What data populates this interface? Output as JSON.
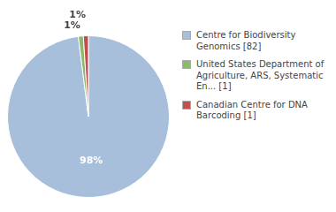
{
  "chart_data": {
    "type": "pie",
    "categories": [
      "Centre for Biodiversity\nGenomics [82]",
      "United States Department of\nAgriculture, ARS, Systematic\nEn... [1]",
      "Canadian Centre for DNA\nBarcoding [1]"
    ],
    "values": [
      98,
      1,
      1
    ],
    "value_labels": [
      "98%",
      "1%",
      "1%"
    ],
    "colors": [
      "#a8bfdc",
      "#8db96e",
      "#c0504d"
    ],
    "data_labels": true,
    "legend": "right"
  }
}
